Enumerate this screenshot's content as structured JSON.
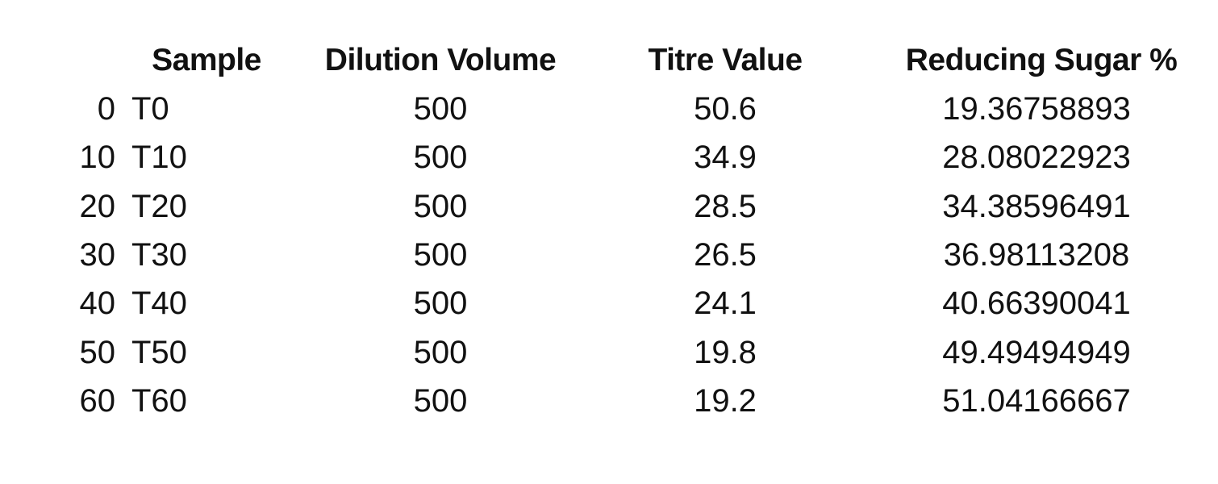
{
  "chart_data": {
    "type": "table",
    "columns": [
      "",
      "Sample",
      "Dilution Volume",
      "Titre Value",
      "Reducing Sugar %"
    ],
    "rows": [
      [
        "0",
        "T0",
        "500",
        "50.6",
        "19.36758893"
      ],
      [
        "10",
        "T10",
        "500",
        "34.9",
        "28.08022923"
      ],
      [
        "20",
        "T20",
        "500",
        "28.5",
        "34.38596491"
      ],
      [
        "30",
        "T30",
        "500",
        "26.5",
        "36.98113208"
      ],
      [
        "40",
        "T40",
        "500",
        "24.1",
        "40.66390041"
      ],
      [
        "50",
        "T50",
        "500",
        "19.8",
        "49.49494949"
      ],
      [
        "60",
        "T60",
        "500",
        "19.2",
        "51.04166667"
      ]
    ]
  }
}
